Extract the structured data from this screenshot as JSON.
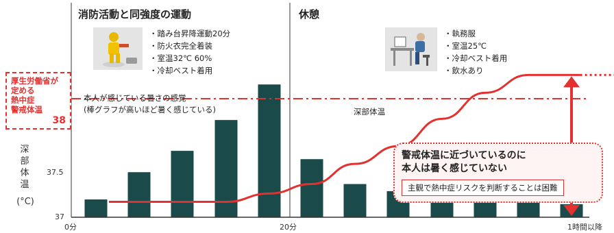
{
  "phases": {
    "exercise": {
      "title": "消防活動と同強度の運動",
      "conditions": [
        "踏み台昇降運動20分",
        "防火衣完全着装",
        "室温32℃ 60%",
        "冷却ベスト着用"
      ],
      "icon": "firefighter-icon"
    },
    "rest": {
      "title": "休憩",
      "conditions": [
        "執務服",
        "室温25℃",
        "冷却ベスト着用",
        "飲水あり"
      ],
      "icon": "desk-worker-icon"
    }
  },
  "threshold": {
    "label_lines": [
      "厚生労働省が",
      "定める",
      "熱中症",
      "警戒体温"
    ],
    "value": "38"
  },
  "yaxis": {
    "label_chars": [
      "深",
      "部",
      "体",
      "温"
    ],
    "unit": "(°C)",
    "ticks": [
      "37.5",
      "37"
    ]
  },
  "xaxis": {
    "ticks": [
      "0分",
      "20分",
      "1時間以降"
    ]
  },
  "annotations": {
    "bars_note": [
      "本人が感じている暑さの感覚",
      "(棒グラフが高いほど暑く感じている)"
    ],
    "line_label": "深部体温"
  },
  "callout": {
    "lines": [
      "警戒体温に近づいているのに",
      "本人は暑く感じていない"
    ],
    "sub": "主観で熱中症リスクを判断することは困難"
  },
  "colors": {
    "bar": "#1a4a4a",
    "line": "#e53030",
    "accent": "#e53030"
  },
  "chart_data": {
    "type": "bar",
    "title": "",
    "ylabel": "深部体温",
    "ylim": [
      37,
      38.5
    ],
    "bar_series": {
      "name": "本人が感じている暑さの感覚",
      "values": [
        37.15,
        37.38,
        37.56,
        37.82,
        38.12,
        37.49,
        37.28,
        37.22,
        37.19,
        37.16,
        37.14,
        37.11
      ]
    },
    "line_series": {
      "name": "深部体温",
      "points": [
        [
          0.3,
          37.13
        ],
        [
          2,
          37.13
        ],
        [
          3,
          37.13
        ],
        [
          4,
          37.2
        ],
        [
          5,
          37.28
        ],
        [
          6,
          37.45
        ],
        [
          7,
          37.6
        ],
        [
          8,
          37.83
        ],
        [
          9,
          38.05
        ],
        [
          10,
          38.2
        ],
        [
          11.2,
          38.2
        ]
      ],
      "extension_dotted_to": 12.2
    },
    "threshold_value": 38
  }
}
